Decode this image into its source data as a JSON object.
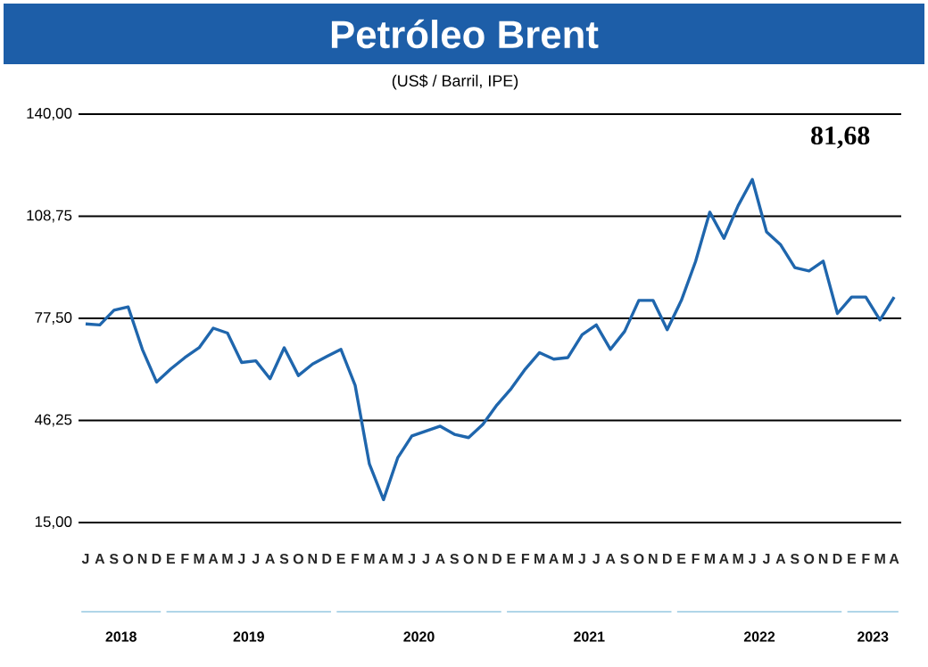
{
  "chart_data": {
    "type": "line",
    "title": "Petróleo Brent",
    "subtitle": "(US$ / Barril, IPE)",
    "annotations": [
      "81,68",
      "2018",
      "2019",
      "2020",
      "2021",
      "2022",
      "2023"
    ],
    "categories": [
      "J",
      "A",
      "S",
      "O",
      "N",
      "D",
      "E",
      "F",
      "M",
      "A",
      "M",
      "J",
      "J",
      "A",
      "S",
      "O",
      "N",
      "D",
      "E",
      "F",
      "M",
      "A",
      "M",
      "J",
      "J",
      "A",
      "S",
      "O",
      "N",
      "D",
      "E",
      "F",
      "M",
      "A",
      "M",
      "J",
      "J",
      "A",
      "S",
      "O",
      "N",
      "D",
      "E",
      "F",
      "M",
      "A",
      "M",
      "J",
      "J",
      "A",
      "S",
      "O",
      "N",
      "D",
      "E",
      "F",
      "M",
      "A"
    ],
    "series": [
      {
        "color": "#1f66ad",
        "values": [
          75.8,
          75.5,
          80,
          81,
          68,
          58,
          62,
          65.5,
          68.5,
          74.5,
          73,
          64,
          64.5,
          59,
          68.5,
          60,
          63.5,
          65.8,
          68,
          57,
          33,
          22,
          34.8,
          41.5,
          43,
          44.5,
          42,
          41,
          45,
          51,
          56,
          62,
          67,
          65,
          65.5,
          72.5,
          75.5,
          68,
          73.5,
          83,
          83,
          74,
          83,
          94.9,
          110,
          102,
          112,
          120,
          104,
          100,
          93,
          92,
          95,
          79,
          84,
          84,
          77,
          84
        ]
      }
    ],
    "ylim": [
      15,
      140
    ],
    "yticks": [
      {
        "value": 15,
        "label": "15,00"
      },
      {
        "value": 46.25,
        "label": "46,25"
      },
      {
        "value": 77.5,
        "label": "77,50"
      },
      {
        "value": 108.75,
        "label": "108,75"
      },
      {
        "value": 140,
        "label": "140,00"
      }
    ],
    "grid": "y",
    "marker": "none",
    "line_style": "solid",
    "legend": false
  }
}
